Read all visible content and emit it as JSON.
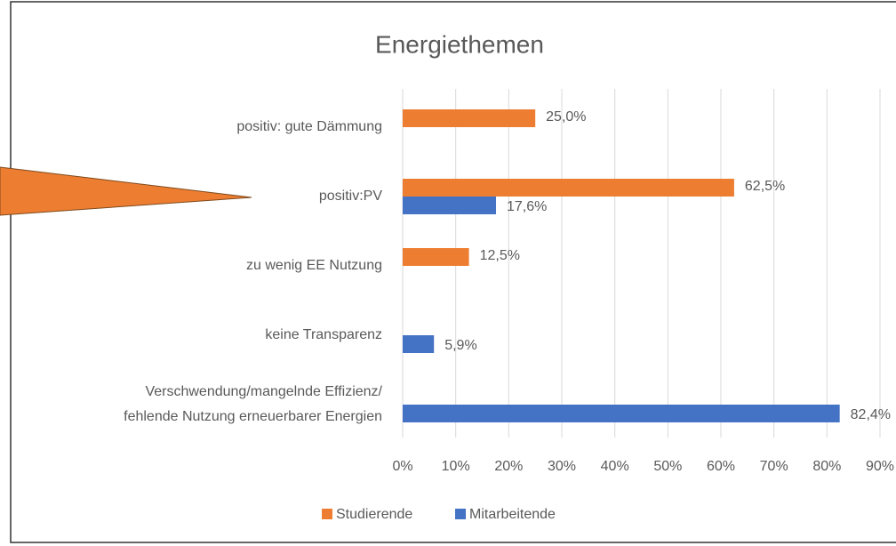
{
  "chart_data": {
    "type": "barh",
    "title": "Energiethemen",
    "categories": [
      "positiv: gute Dämmung",
      "positiv:PV",
      "zu wenig EE Nutzung",
      "keine Transparenz",
      "Verschwendung/mangelnde Effizienz/\nfehlende Nutzung erneuerbarer Energien"
    ],
    "series": [
      {
        "name": "Studierende",
        "color": "#ED7D31",
        "values": [
          25.0,
          62.5,
          12.5,
          null,
          null
        ],
        "value_labels": [
          "25,0%",
          "62,5%",
          "12,5%",
          null,
          null
        ]
      },
      {
        "name": "Mitarbeitende",
        "color": "#4472C4",
        "values": [
          null,
          17.6,
          null,
          5.9,
          82.4
        ],
        "value_labels": [
          null,
          "17,6%",
          null,
          "5,9%",
          "82,4%"
        ]
      }
    ],
    "xlim": [
      0,
      90
    ],
    "xticks": [
      {
        "value": 0,
        "label": "0%"
      },
      {
        "value": 10,
        "label": "10%"
      },
      {
        "value": 20,
        "label": "20%"
      },
      {
        "value": 30,
        "label": "30%"
      },
      {
        "value": 40,
        "label": "40%"
      },
      {
        "value": 50,
        "label": "50%"
      },
      {
        "value": 60,
        "label": "60%"
      },
      {
        "value": 70,
        "label": "70%"
      },
      {
        "value": 80,
        "label": "80%"
      },
      {
        "value": 90,
        "label": "90%"
      }
    ],
    "grid": true,
    "legend": "bottom"
  }
}
